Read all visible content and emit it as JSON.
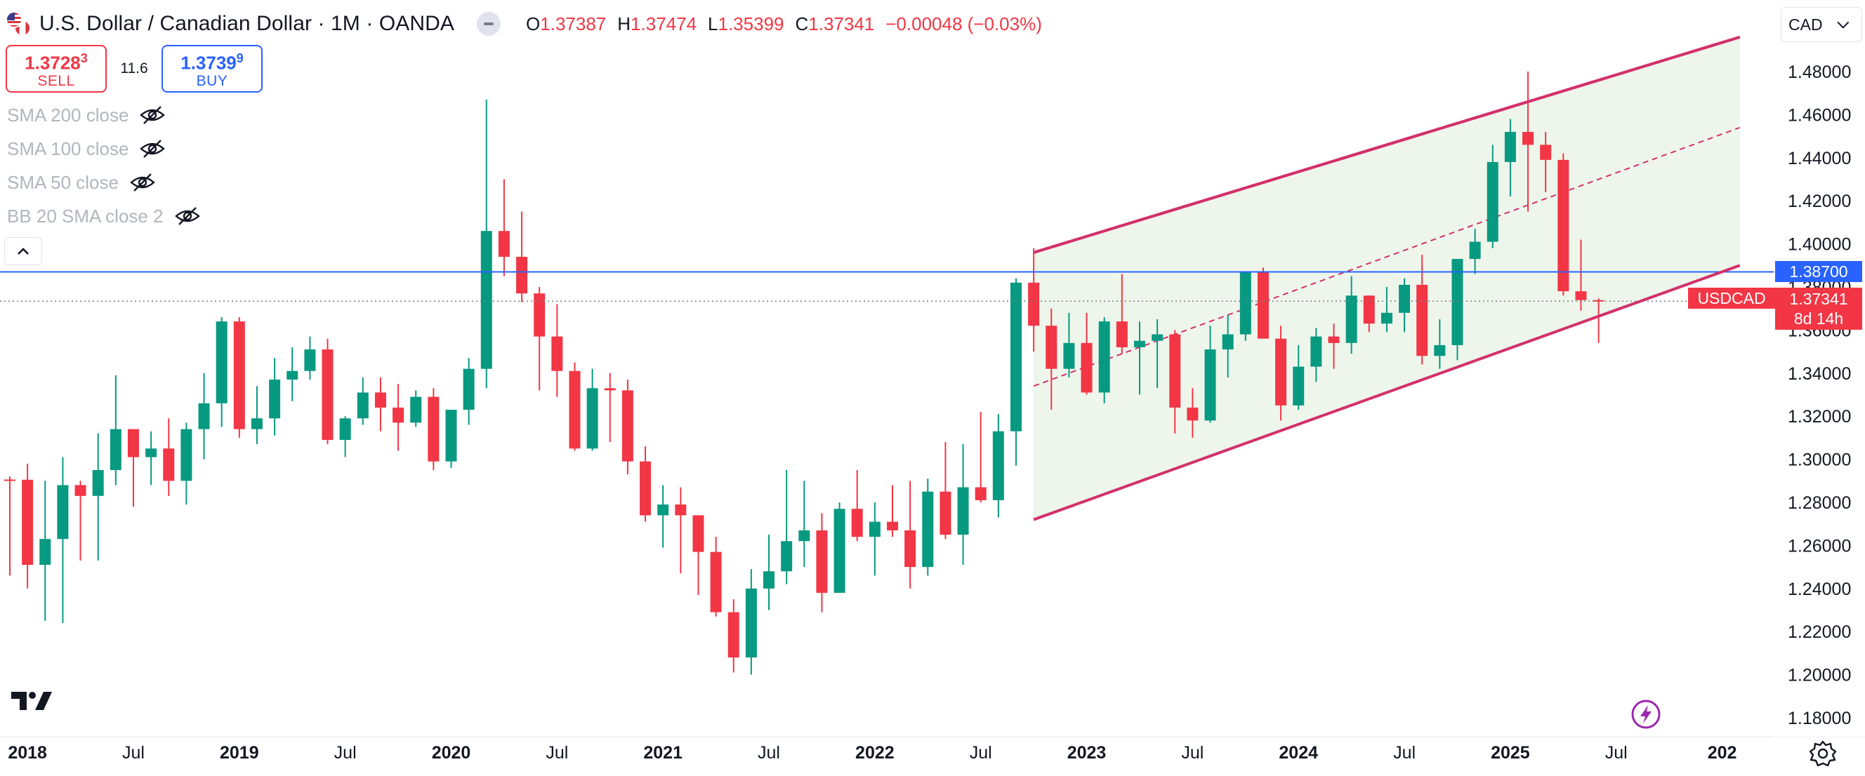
{
  "header": {
    "title": "U.S. Dollar / Canadian Dollar · 1M · OANDA",
    "ohlc": {
      "open_label": "O",
      "open": "1.37387",
      "high_label": "H",
      "high": "1.37474",
      "low_label": "L",
      "low": "1.35399",
      "close_label": "C",
      "close": "1.37341",
      "change": "−0.00048 (−0.03%)"
    }
  },
  "trade": {
    "sell_price_main": "1.3728",
    "sell_price_sup": "3",
    "sell_label": "SELL",
    "spread": "11.6",
    "buy_price_main": "1.3739",
    "buy_price_sup": "9",
    "buy_label": "BUY"
  },
  "indicators": [
    {
      "label": "SMA 200 close"
    },
    {
      "label": "SMA 100 close"
    },
    {
      "label": "SMA 50 close"
    },
    {
      "label": "BB 20 SMA close 2"
    }
  ],
  "currency_selector": "CAD",
  "icons": {
    "flag": "us-ca-flag-icon",
    "market_status": "market-closed-icon",
    "eye": "eye-off-icon",
    "collapse": "chevron-up-icon",
    "logo": "tradingview-logo-icon",
    "bolt": "lightning-icon",
    "settings": "gear-icon"
  },
  "colors": {
    "up": "#089981",
    "down": "#f23645",
    "channel": "#d3306b",
    "channel_fill": "#eef6ec",
    "level": "#2962ff",
    "axis_text": "#131722"
  },
  "chart_data": {
    "type": "candlestick",
    "symbol": "USDCAD",
    "interval": "1M",
    "x_axis": {
      "tick_labels": [
        "2018",
        "Jul",
        "2019",
        "Jul",
        "2020",
        "Jul",
        "2021",
        "Jul",
        "2022",
        "Jul",
        "2023",
        "Jul",
        "2024",
        "Jul",
        "2025",
        "Jul",
        "202"
      ],
      "tick_months": [
        "2018-01",
        "2018-07",
        "2019-01",
        "2019-07",
        "2020-01",
        "2020-07",
        "2021-01",
        "2021-07",
        "2022-01",
        "2022-07",
        "2023-01",
        "2023-07",
        "2024-01",
        "2024-07",
        "2025-01",
        "2025-07",
        "2026-01"
      ]
    },
    "y_axis": {
      "min": 1.17,
      "max": 1.497,
      "tick_labels": [
        "1.48000",
        "1.46000",
        "1.44000",
        "1.42000",
        "1.40000",
        "1.38000",
        "1.36000",
        "1.34000",
        "1.32000",
        "1.30000",
        "1.28000",
        "1.26000",
        "1.24000",
        "1.22000",
        "1.20000",
        "1.18000"
      ]
    },
    "candles": [
      {
        "month": "2017-12",
        "o": 1.2906,
        "h": 1.292,
        "l": 1.246,
        "c": 1.2905
      },
      {
        "month": "2018-01",
        "o": 1.2905,
        "h": 1.298,
        "l": 1.24,
        "c": 1.251
      },
      {
        "month": "2018-02",
        "o": 1.251,
        "h": 1.29,
        "l": 1.225,
        "c": 1.263
      },
      {
        "month": "2018-03",
        "o": 1.263,
        "h": 1.301,
        "l": 1.224,
        "c": 1.288
      },
      {
        "month": "2018-04",
        "o": 1.288,
        "h": 1.29,
        "l": 1.253,
        "c": 1.283
      },
      {
        "month": "2018-05",
        "o": 1.283,
        "h": 1.312,
        "l": 1.253,
        "c": 1.295
      },
      {
        "month": "2018-06",
        "o": 1.295,
        "h": 1.339,
        "l": 1.288,
        "c": 1.314
      },
      {
        "month": "2018-07",
        "o": 1.314,
        "h": 1.313,
        "l": 1.278,
        "c": 1.301
      },
      {
        "month": "2018-08",
        "o": 1.301,
        "h": 1.313,
        "l": 1.288,
        "c": 1.305
      },
      {
        "month": "2018-09",
        "o": 1.305,
        "h": 1.319,
        "l": 1.283,
        "c": 1.29
      },
      {
        "month": "2018-10",
        "o": 1.29,
        "h": 1.317,
        "l": 1.279,
        "c": 1.314
      },
      {
        "month": "2018-11",
        "o": 1.314,
        "h": 1.34,
        "l": 1.3,
        "c": 1.326
      },
      {
        "month": "2018-12",
        "o": 1.326,
        "h": 1.366,
        "l": 1.315,
        "c": 1.364
      },
      {
        "month": "2019-01",
        "o": 1.364,
        "h": 1.366,
        "l": 1.31,
        "c": 1.314
      },
      {
        "month": "2019-02",
        "o": 1.314,
        "h": 1.334,
        "l": 1.307,
        "c": 1.319
      },
      {
        "month": "2019-03",
        "o": 1.319,
        "h": 1.347,
        "l": 1.311,
        "c": 1.337
      },
      {
        "month": "2019-04",
        "o": 1.337,
        "h": 1.352,
        "l": 1.327,
        "c": 1.341
      },
      {
        "month": "2019-05",
        "o": 1.341,
        "h": 1.357,
        "l": 1.337,
        "c": 1.351
      },
      {
        "month": "2019-06",
        "o": 1.351,
        "h": 1.356,
        "l": 1.307,
        "c": 1.309
      },
      {
        "month": "2019-07",
        "o": 1.309,
        "h": 1.32,
        "l": 1.301,
        "c": 1.319
      },
      {
        "month": "2019-08",
        "o": 1.319,
        "h": 1.338,
        "l": 1.316,
        "c": 1.331
      },
      {
        "month": "2019-09",
        "o": 1.331,
        "h": 1.338,
        "l": 1.313,
        "c": 1.324
      },
      {
        "month": "2019-10",
        "o": 1.324,
        "h": 1.335,
        "l": 1.304,
        "c": 1.317
      },
      {
        "month": "2019-11",
        "o": 1.317,
        "h": 1.332,
        "l": 1.315,
        "c": 1.329
      },
      {
        "month": "2019-12",
        "o": 1.329,
        "h": 1.333,
        "l": 1.295,
        "c": 1.299
      },
      {
        "month": "2020-01",
        "o": 1.299,
        "h": 1.323,
        "l": 1.296,
        "c": 1.323
      },
      {
        "month": "2020-02",
        "o": 1.323,
        "h": 1.347,
        "l": 1.316,
        "c": 1.342
      },
      {
        "month": "2020-03",
        "o": 1.342,
        "h": 1.467,
        "l": 1.333,
        "c": 1.406
      },
      {
        "month": "2020-04",
        "o": 1.406,
        "h": 1.43,
        "l": 1.385,
        "c": 1.394
      },
      {
        "month": "2020-05",
        "o": 1.394,
        "h": 1.415,
        "l": 1.373,
        "c": 1.377
      },
      {
        "month": "2020-06",
        "o": 1.377,
        "h": 1.38,
        "l": 1.332,
        "c": 1.357
      },
      {
        "month": "2020-07",
        "o": 1.357,
        "h": 1.372,
        "l": 1.329,
        "c": 1.341
      },
      {
        "month": "2020-08",
        "o": 1.341,
        "h": 1.345,
        "l": 1.304,
        "c": 1.305
      },
      {
        "month": "2020-09",
        "o": 1.305,
        "h": 1.342,
        "l": 1.304,
        "c": 1.333
      },
      {
        "month": "2020-10",
        "o": 1.333,
        "h": 1.34,
        "l": 1.308,
        "c": 1.332
      },
      {
        "month": "2020-11",
        "o": 1.332,
        "h": 1.337,
        "l": 1.293,
        "c": 1.299
      },
      {
        "month": "2020-12",
        "o": 1.299,
        "h": 1.306,
        "l": 1.271,
        "c": 1.274
      },
      {
        "month": "2021-01",
        "o": 1.274,
        "h": 1.288,
        "l": 1.259,
        "c": 1.279
      },
      {
        "month": "2021-02",
        "o": 1.279,
        "h": 1.287,
        "l": 1.247,
        "c": 1.274
      },
      {
        "month": "2021-03",
        "o": 1.274,
        "h": 1.274,
        "l": 1.237,
        "c": 1.257
      },
      {
        "month": "2021-04",
        "o": 1.257,
        "h": 1.264,
        "l": 1.227,
        "c": 1.229
      },
      {
        "month": "2021-05",
        "o": 1.229,
        "h": 1.235,
        "l": 1.201,
        "c": 1.208
      },
      {
        "month": "2021-06",
        "o": 1.208,
        "h": 1.249,
        "l": 1.2,
        "c": 1.24
      },
      {
        "month": "2021-07",
        "o": 1.24,
        "h": 1.265,
        "l": 1.23,
        "c": 1.248
      },
      {
        "month": "2021-08",
        "o": 1.248,
        "h": 1.295,
        "l": 1.242,
        "c": 1.262
      },
      {
        "month": "2021-09",
        "o": 1.262,
        "h": 1.29,
        "l": 1.25,
        "c": 1.267
      },
      {
        "month": "2021-10",
        "o": 1.267,
        "h": 1.275,
        "l": 1.229,
        "c": 1.238
      },
      {
        "month": "2021-11",
        "o": 1.238,
        "h": 1.28,
        "l": 1.238,
        "c": 1.277
      },
      {
        "month": "2021-12",
        "o": 1.277,
        "h": 1.295,
        "l": 1.262,
        "c": 1.264
      },
      {
        "month": "2022-01",
        "o": 1.264,
        "h": 1.28,
        "l": 1.246,
        "c": 1.271
      },
      {
        "month": "2022-02",
        "o": 1.271,
        "h": 1.288,
        "l": 1.264,
        "c": 1.267
      },
      {
        "month": "2022-03",
        "o": 1.267,
        "h": 1.29,
        "l": 1.24,
        "c": 1.25
      },
      {
        "month": "2022-04",
        "o": 1.25,
        "h": 1.291,
        "l": 1.246,
        "c": 1.285
      },
      {
        "month": "2022-05",
        "o": 1.285,
        "h": 1.308,
        "l": 1.263,
        "c": 1.265
      },
      {
        "month": "2022-06",
        "o": 1.265,
        "h": 1.307,
        "l": 1.251,
        "c": 1.287
      },
      {
        "month": "2022-07",
        "o": 1.287,
        "h": 1.322,
        "l": 1.28,
        "c": 1.281
      },
      {
        "month": "2022-08",
        "o": 1.281,
        "h": 1.321,
        "l": 1.273,
        "c": 1.313
      },
      {
        "month": "2022-09",
        "o": 1.313,
        "h": 1.384,
        "l": 1.297,
        "c": 1.382
      },
      {
        "month": "2022-10",
        "o": 1.382,
        "h": 1.398,
        "l": 1.35,
        "c": 1.362
      },
      {
        "month": "2022-11",
        "o": 1.362,
        "h": 1.37,
        "l": 1.323,
        "c": 1.342
      },
      {
        "month": "2022-12",
        "o": 1.342,
        "h": 1.368,
        "l": 1.338,
        "c": 1.354
      },
      {
        "month": "2023-01",
        "o": 1.354,
        "h": 1.368,
        "l": 1.33,
        "c": 1.331
      },
      {
        "month": "2023-02",
        "o": 1.331,
        "h": 1.366,
        "l": 1.326,
        "c": 1.364
      },
      {
        "month": "2023-03",
        "o": 1.364,
        "h": 1.386,
        "l": 1.349,
        "c": 1.352
      },
      {
        "month": "2023-04",
        "o": 1.352,
        "h": 1.364,
        "l": 1.33,
        "c": 1.355
      },
      {
        "month": "2023-05",
        "o": 1.355,
        "h": 1.365,
        "l": 1.333,
        "c": 1.358
      },
      {
        "month": "2023-06",
        "o": 1.358,
        "h": 1.36,
        "l": 1.312,
        "c": 1.324
      },
      {
        "month": "2023-07",
        "o": 1.324,
        "h": 1.333,
        "l": 1.31,
        "c": 1.318
      },
      {
        "month": "2023-08",
        "o": 1.318,
        "h": 1.362,
        "l": 1.317,
        "c": 1.351
      },
      {
        "month": "2023-09",
        "o": 1.351,
        "h": 1.367,
        "l": 1.338,
        "c": 1.358
      },
      {
        "month": "2023-10",
        "o": 1.358,
        "h": 1.386,
        "l": 1.355,
        "c": 1.387
      },
      {
        "month": "2023-11",
        "o": 1.387,
        "h": 1.389,
        "l": 1.357,
        "c": 1.356
      },
      {
        "month": "2023-12",
        "o": 1.356,
        "h": 1.362,
        "l": 1.318,
        "c": 1.325
      },
      {
        "month": "2024-01",
        "o": 1.325,
        "h": 1.353,
        "l": 1.323,
        "c": 1.343
      },
      {
        "month": "2024-02",
        "o": 1.343,
        "h": 1.361,
        "l": 1.336,
        "c": 1.357
      },
      {
        "month": "2024-03",
        "o": 1.357,
        "h": 1.363,
        "l": 1.342,
        "c": 1.354
      },
      {
        "month": "2024-04",
        "o": 1.354,
        "h": 1.385,
        "l": 1.349,
        "c": 1.376
      },
      {
        "month": "2024-05",
        "o": 1.376,
        "h": 1.376,
        "l": 1.359,
        "c": 1.363
      },
      {
        "month": "2024-06",
        "o": 1.363,
        "h": 1.38,
        "l": 1.359,
        "c": 1.368
      },
      {
        "month": "2024-07",
        "o": 1.368,
        "h": 1.384,
        "l": 1.359,
        "c": 1.381
      },
      {
        "month": "2024-08",
        "o": 1.381,
        "h": 1.395,
        "l": 1.344,
        "c": 1.348
      },
      {
        "month": "2024-09",
        "o": 1.348,
        "h": 1.365,
        "l": 1.342,
        "c": 1.353
      },
      {
        "month": "2024-10",
        "o": 1.353,
        "h": 1.393,
        "l": 1.346,
        "c": 1.393
      },
      {
        "month": "2024-11",
        "o": 1.393,
        "h": 1.407,
        "l": 1.386,
        "c": 1.401
      },
      {
        "month": "2024-12",
        "o": 1.401,
        "h": 1.446,
        "l": 1.398,
        "c": 1.438
      },
      {
        "month": "2025-01",
        "o": 1.438,
        "h": 1.458,
        "l": 1.422,
        "c": 1.452
      },
      {
        "month": "2025-02",
        "o": 1.452,
        "h": 1.48,
        "l": 1.415,
        "c": 1.446
      },
      {
        "month": "2025-03",
        "o": 1.446,
        "h": 1.452,
        "l": 1.424,
        "c": 1.439
      },
      {
        "month": "2025-04",
        "o": 1.439,
        "h": 1.442,
        "l": 1.376,
        "c": 1.378
      },
      {
        "month": "2025-05",
        "o": 1.378,
        "h": 1.402,
        "l": 1.369,
        "c": 1.3739
      },
      {
        "month": "2025-06",
        "o": 1.3739,
        "h": 1.3747,
        "l": 1.354,
        "c": 1.3734
      }
    ],
    "drawings": {
      "parallel_channel": {
        "upper": {
          "start": {
            "month": "2022-10",
            "price": 1.396
          },
          "end": {
            "month": "2026-02",
            "price": 1.496
          }
        },
        "lower": {
          "start": {
            "month": "2022-10",
            "price": 1.272
          },
          "end": {
            "month": "2026-02",
            "price": 1.39
          }
        },
        "median": {
          "start": {
            "month": "2022-10",
            "price": 1.334
          },
          "end": {
            "month": "2026-02",
            "price": 1.454
          }
        }
      },
      "horizontal_level": {
        "price": 1.387,
        "label": "1.38700"
      }
    },
    "last_price": {
      "symbol_label": "USDCAD",
      "price_label": "1.37341",
      "countdown": "8d 14h",
      "price": 1.37341
    }
  }
}
